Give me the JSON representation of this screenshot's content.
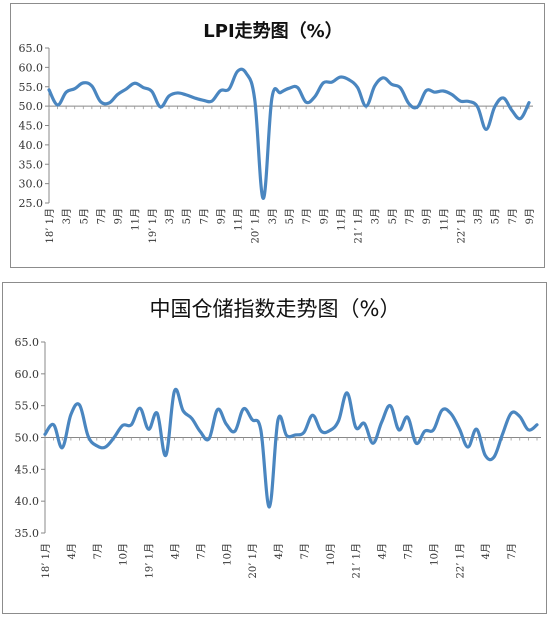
{
  "chart_data": [
    {
      "type": "line",
      "title": "LPI走势图（%）",
      "ylim": [
        25.0,
        65.0
      ],
      "yticks": [
        "65.0",
        "60.0",
        "55.0",
        "50.0",
        "45.0",
        "40.0",
        "35.0",
        "30.0",
        "25.0"
      ],
      "baseline": 50.0,
      "xtick_labels": [
        "18’ 1月",
        "3月",
        "5月",
        "7月",
        "9月",
        "11月",
        "19’ 1月",
        "3月",
        "5月",
        "7月",
        "9月",
        "11月",
        "20’ 1月",
        "3月",
        "5月",
        "7月",
        "9月",
        "11月",
        "21’ 1月",
        "3月",
        "5月",
        "7月",
        "9月",
        "11月",
        "22’ 1月",
        "3月",
        "5月",
        "7月",
        "9月"
      ],
      "series": [
        {
          "color": "#4a86c0",
          "values": [
            54.2,
            50.3,
            53.6,
            54.5,
            56.0,
            55.2,
            51.2,
            50.8,
            53.0,
            54.4,
            55.9,
            54.8,
            53.8,
            49.8,
            52.6,
            53.4,
            52.9,
            52.1,
            51.5,
            51.3,
            54.0,
            54.4,
            59.0,
            58.5,
            51.7,
            26.2,
            52.0,
            53.5,
            54.6,
            54.8,
            51.0,
            52.4,
            56.0,
            56.2,
            57.5,
            56.8,
            54.8,
            50.0,
            55.2,
            57.3,
            55.6,
            54.7,
            50.6,
            49.8,
            54.0,
            53.6,
            53.9,
            53.0,
            51.3,
            51.2,
            49.8,
            44.0,
            49.8,
            52.1,
            48.9,
            46.8,
            50.9
          ]
        }
      ]
    },
    {
      "type": "line",
      "title": "中国仓储指数走势图（%）",
      "ylim": [
        35.0,
        65.0
      ],
      "yticks": [
        "65.0",
        "60.0",
        "55.0",
        "50.0",
        "45.0",
        "40.0",
        "35.0"
      ],
      "baseline": 50.0,
      "xtick_labels": [
        "18’ 1月",
        "4月",
        "7月",
        "10月",
        "19’ 1月",
        "4月",
        "7月",
        "10月",
        "20’ 1月",
        "4月",
        "7月",
        "10月",
        "21’ 1月",
        "4月",
        "7月",
        "10月",
        "22’ 1月",
        "4月",
        "7月"
      ],
      "series": [
        {
          "color": "#4a86c0",
          "values": [
            50.5,
            52.0,
            48.4,
            53.6,
            55.1,
            50.2,
            48.7,
            48.5,
            50.0,
            51.9,
            52.0,
            54.6,
            51.3,
            53.8,
            47.2,
            57.3,
            54.2,
            53.0,
            50.9,
            49.8,
            54.4,
            52.1,
            51.0,
            54.5,
            52.8,
            51.2,
            39.1,
            52.8,
            50.3,
            50.4,
            50.8,
            53.5,
            51.0,
            51.1,
            52.6,
            57.0,
            51.6,
            52.2,
            49.1,
            52.4,
            55.0,
            51.2,
            53.2,
            49.1,
            51.0,
            51.2,
            54.3,
            53.8,
            51.4,
            48.5,
            51.3,
            47.2,
            46.9,
            50.5,
            53.8,
            53.3,
            51.2,
            52.0
          ]
        }
      ]
    }
  ]
}
